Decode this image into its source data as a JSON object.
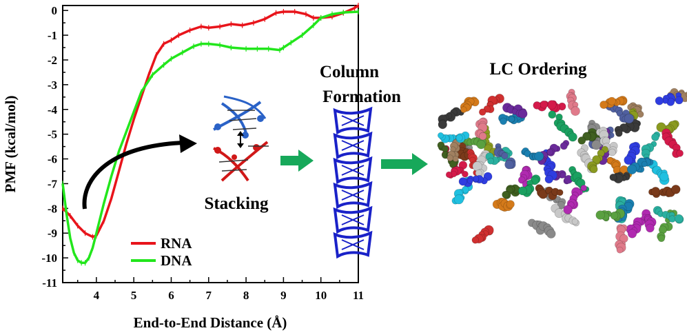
{
  "chart_data": {
    "type": "line",
    "title": "",
    "xlabel": "End-to-End Distance (Å)",
    "ylabel": "PMF (kcal/mol)",
    "xlim": [
      3.1,
      11
    ],
    "ylim": [
      -11,
      0.2
    ],
    "xticks": [
      "4",
      "5",
      "6",
      "7",
      "8",
      "9",
      "10",
      "11"
    ],
    "yticks": [
      "0",
      "-1",
      "-2",
      "-3",
      "-4",
      "-5",
      "-6",
      "-7",
      "-8",
      "-9",
      "-10",
      "-11"
    ],
    "grid": false,
    "legend_position": "bottom-left",
    "series": [
      {
        "name": "RNA",
        "color": "#e8141b",
        "x": [
          3.1,
          3.3,
          3.5,
          3.7,
          3.9,
          4.0,
          4.2,
          4.4,
          4.6,
          4.8,
          5.0,
          5.2,
          5.4,
          5.6,
          5.8,
          6.0,
          6.2,
          6.5,
          6.8,
          7.0,
          7.3,
          7.6,
          7.9,
          8.2,
          8.5,
          8.8,
          9.0,
          9.3,
          9.6,
          9.8,
          10.0,
          10.3,
          10.6,
          10.9,
          11.0
        ],
        "y": [
          -8.0,
          -8.3,
          -8.7,
          -9.0,
          -9.15,
          -9.1,
          -8.5,
          -7.6,
          -6.5,
          -5.4,
          -4.4,
          -3.5,
          -2.6,
          -1.8,
          -1.35,
          -1.2,
          -1.0,
          -0.8,
          -0.65,
          -0.7,
          -0.65,
          -0.55,
          -0.6,
          -0.5,
          -0.35,
          -0.1,
          -0.05,
          -0.05,
          -0.15,
          -0.3,
          -0.3,
          -0.25,
          -0.1,
          0.1,
          0.2
        ]
      },
      {
        "name": "DNA",
        "color": "#22e61c",
        "x": [
          3.1,
          3.2,
          3.3,
          3.4,
          3.5,
          3.6,
          3.7,
          3.8,
          3.9,
          4.0,
          4.2,
          4.4,
          4.6,
          4.8,
          5.0,
          5.2,
          5.5,
          5.8,
          6.0,
          6.3,
          6.6,
          6.8,
          7.0,
          7.3,
          7.6,
          8.0,
          8.3,
          8.6,
          8.9,
          9.0,
          9.2,
          9.5,
          9.8,
          10.0,
          10.3,
          10.6,
          11.0
        ],
        "y": [
          -7.0,
          -8.2,
          -9.2,
          -9.8,
          -10.1,
          -10.2,
          -10.2,
          -10.0,
          -9.6,
          -9.0,
          -7.8,
          -6.7,
          -5.7,
          -4.9,
          -4.1,
          -3.3,
          -2.6,
          -2.2,
          -1.95,
          -1.7,
          -1.45,
          -1.35,
          -1.35,
          -1.4,
          -1.5,
          -1.55,
          -1.55,
          -1.55,
          -1.6,
          -1.5,
          -1.3,
          -1.0,
          -0.6,
          -0.3,
          -0.15,
          -0.08,
          -0.05
        ]
      }
    ]
  },
  "annotations": {
    "stacking_label": "Stacking",
    "column_label_line1": "Column",
    "column_label_line2": "Formation",
    "lc_label": "LC Ordering"
  },
  "colors": {
    "arrow_black": "#000000",
    "arrow_green": "#17a85a",
    "dna_blue": "#2a62c7",
    "dna_red": "#d01818",
    "column_blue": "#1a22c8"
  },
  "lc_palette": [
    "#6a2a9a",
    "#1a7fb0",
    "#2f3de0",
    "#d41a4a",
    "#8a8a8a",
    "#c8c8c8",
    "#2ab0a0",
    "#8a9a20",
    "#d47a1a",
    "#b02ab0",
    "#e07a8a",
    "#3a3a3a",
    "#5aa040",
    "#7a3a1a",
    "#1aa060",
    "#a08060",
    "#5060a0",
    "#d03030",
    "#20c0e0",
    "#406020"
  ]
}
